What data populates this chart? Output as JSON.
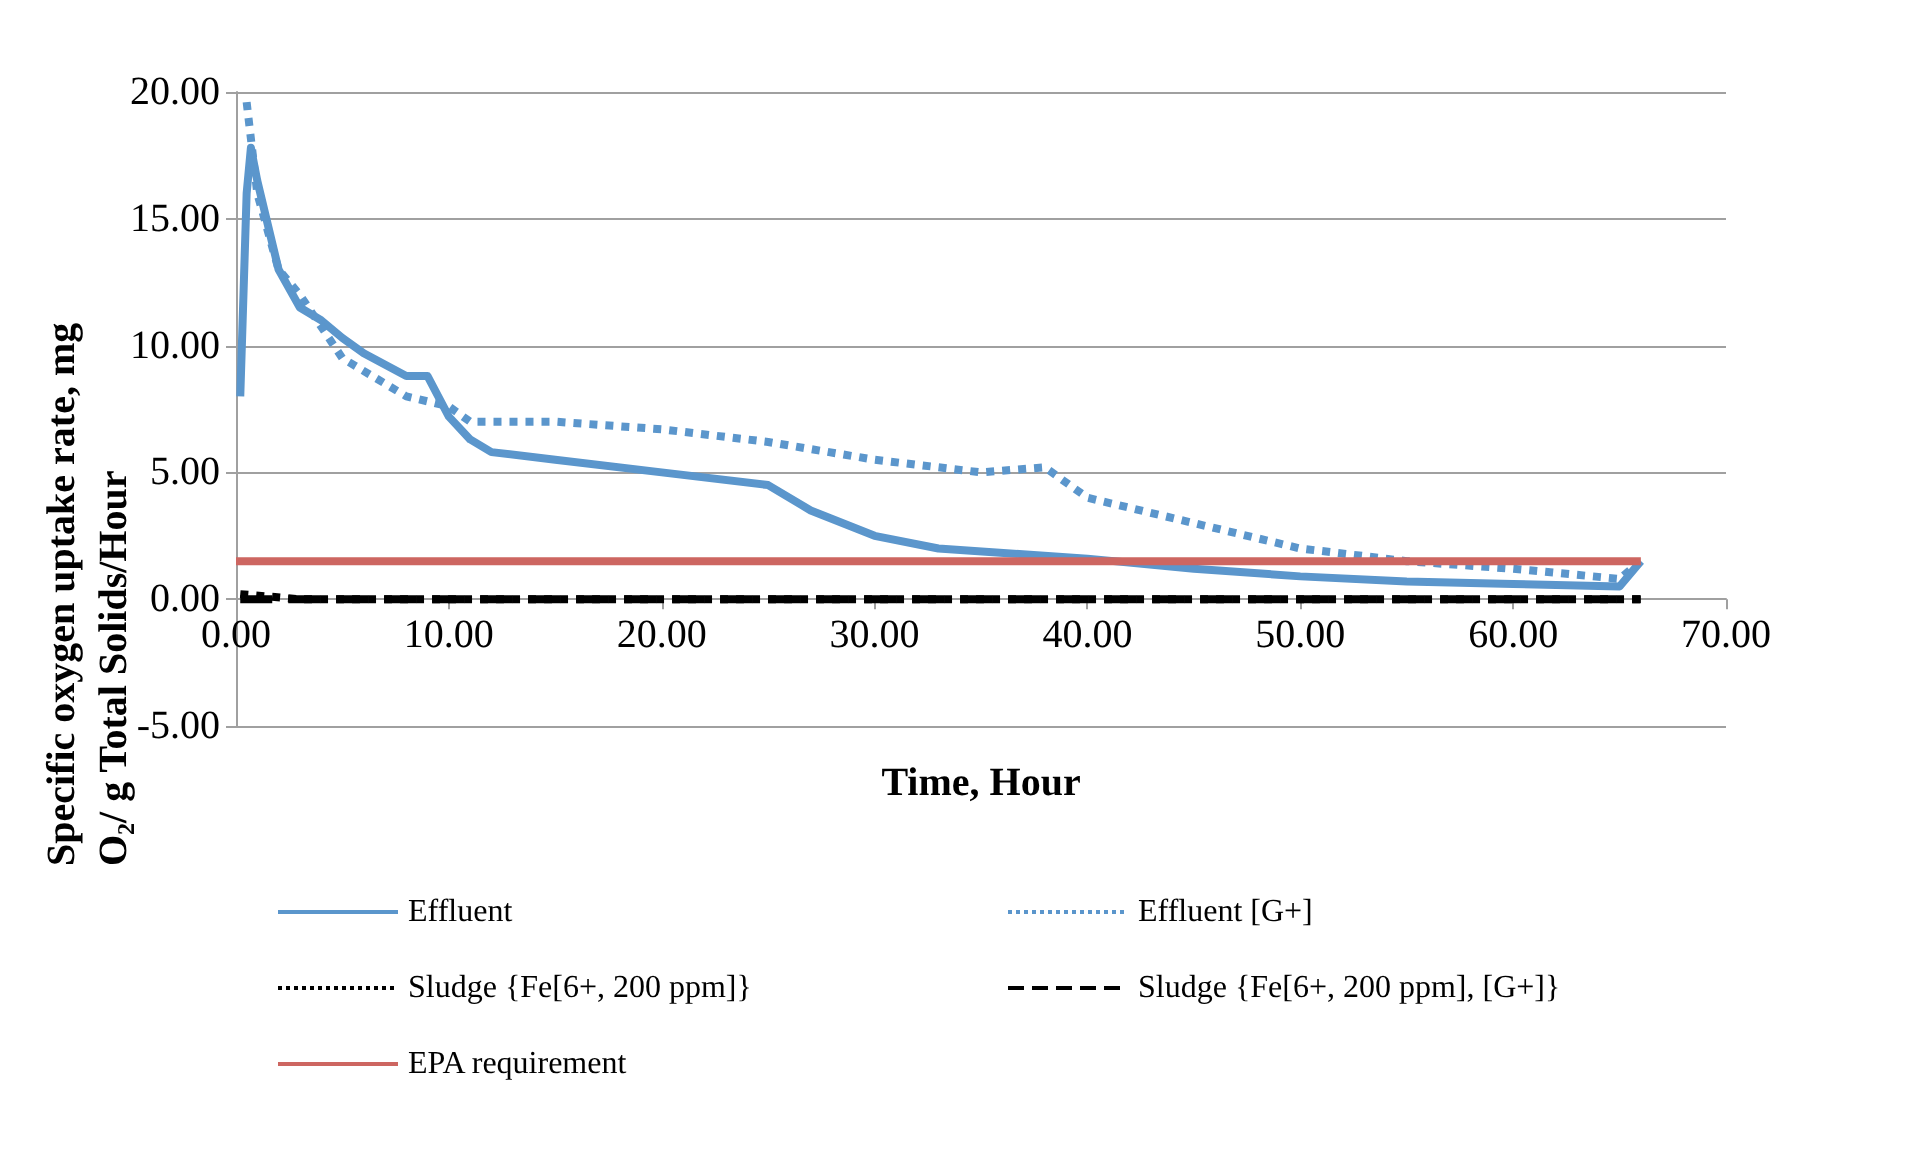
{
  "chart_data": {
    "type": "line",
    "xlabel": "Time, Hour",
    "ylabel": "Specific oxygen uptake rate, mg O₂/ g Total Solids/Hour",
    "xlim": [
      0,
      70
    ],
    "ylim": [
      -5,
      20
    ],
    "xticks": [
      {
        "value": 0,
        "label": "0.00"
      },
      {
        "value": 10,
        "label": "10.00"
      },
      {
        "value": 20,
        "label": "20.00"
      },
      {
        "value": 30,
        "label": "30.00"
      },
      {
        "value": 40,
        "label": "40.00"
      },
      {
        "value": 50,
        "label": "50.00"
      },
      {
        "value": 60,
        "label": "60.00"
      },
      {
        "value": 70,
        "label": "70.00"
      }
    ],
    "yticks": [
      {
        "value": -5,
        "label": "-5.00"
      },
      {
        "value": 0,
        "label": "0.00"
      },
      {
        "value": 5,
        "label": "5.00"
      },
      {
        "value": 10,
        "label": "10.00"
      },
      {
        "value": 15,
        "label": "15.00"
      },
      {
        "value": 20,
        "label": "20.00"
      }
    ],
    "grid": "y",
    "legend": "bottom",
    "marker": "none",
    "series": [
      {
        "name": "Effluent",
        "color": "#5b96cc",
        "line_style": "solid",
        "x": [
          0.2,
          0.5,
          0.7,
          1,
          2,
          3,
          4,
          5,
          6,
          8,
          9,
          10,
          11,
          12,
          15,
          20,
          25,
          27,
          30,
          33,
          40,
          45,
          50,
          55,
          60,
          65,
          66
        ],
        "values": [
          8,
          16,
          17.8,
          16.5,
          13,
          11.5,
          11,
          10.3,
          9.7,
          8.8,
          8.8,
          7.2,
          6.3,
          5.8,
          5.5,
          5,
          4.5,
          3.5,
          2.5,
          2,
          1.6,
          1.2,
          0.9,
          0.7,
          0.6,
          0.5,
          1.5
        ]
      },
      {
        "name": "Effluent [G+]",
        "color": "#5b96cc",
        "line_style": "dotted",
        "x": [
          0.5,
          1,
          2,
          3,
          5,
          8,
          10,
          11,
          15,
          20,
          25,
          30,
          35,
          38,
          40,
          45,
          50,
          55,
          60,
          65,
          66
        ],
        "values": [
          19.6,
          16,
          13,
          12,
          9.5,
          8,
          7.6,
          7,
          7,
          6.7,
          6.2,
          5.5,
          5,
          5.2,
          4,
          3,
          2,
          1.5,
          1.2,
          0.8,
          1.5
        ]
      },
      {
        "name": "Sludge {Fe[6+, 200 ppm]}",
        "color": "#000000",
        "line_style": "dotted",
        "x": [
          0.2,
          3,
          66
        ],
        "values": [
          0.2,
          0,
          0
        ]
      },
      {
        "name": "Sludge {Fe[6+, 200 ppm], [G+]}",
        "color": "#000000",
        "line_style": "dashed",
        "x": [
          0.2,
          66
        ],
        "values": [
          0,
          0
        ]
      },
      {
        "name": "EPA requirement",
        "color": "#cd6661",
        "line_style": "solid",
        "x": [
          0,
          66
        ],
        "values": [
          1.5,
          1.5
        ]
      }
    ]
  }
}
